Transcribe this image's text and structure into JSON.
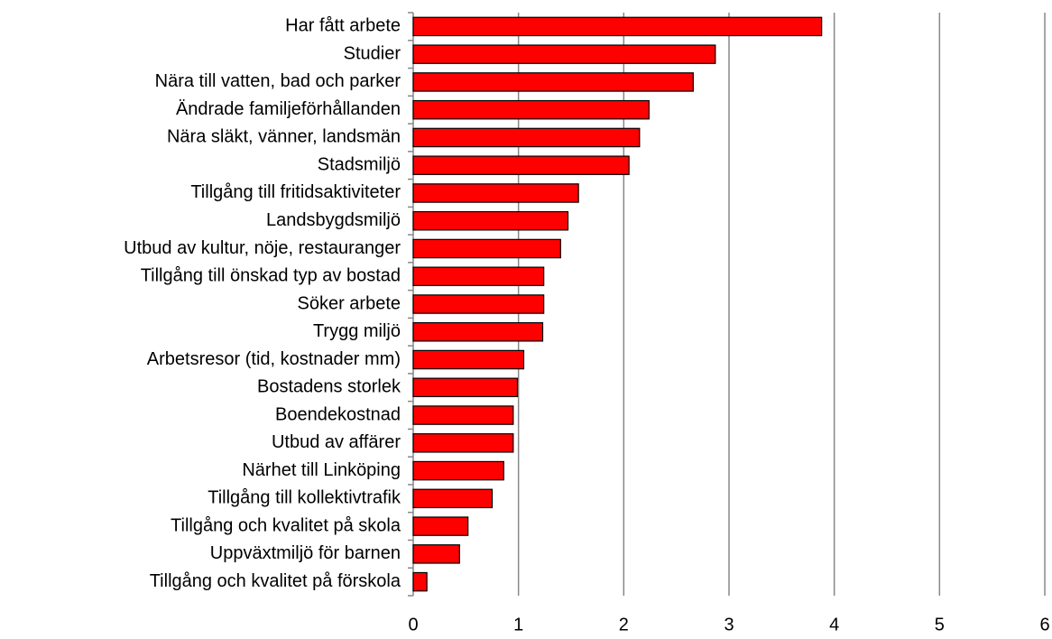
{
  "chart_data": {
    "type": "barh",
    "categories": [
      "Har fått arbete",
      "Studier",
      "Nära till vatten, bad och parker",
      "Ändrade familjeförhållanden",
      "Nära släkt, vänner, landsmän",
      "Stadsmiljö",
      "Tillgång till fritidsaktiviteter",
      "Landsbygdsmiljö",
      "Utbud av kultur, nöje, restauranger",
      "Tillgång till önskad typ av bostad",
      "Söker arbete",
      "Trygg miljö",
      "Arbetsresor (tid, kostnader mm)",
      "Bostadens storlek",
      "Boendekostnad",
      "Utbud av affärer",
      "Närhet till Linköping",
      "Tillgång till kollektivtrafik",
      "Tillgång och kvalitet på skola",
      "Uppväxtmiljö för barnen",
      "Tillgång och kvalitet på förskola"
    ],
    "values": [
      3.88,
      2.87,
      2.66,
      2.24,
      2.15,
      2.05,
      1.57,
      1.47,
      1.4,
      1.24,
      1.24,
      1.23,
      1.05,
      0.99,
      0.95,
      0.95,
      0.86,
      0.75,
      0.52,
      0.44,
      0.13
    ],
    "color": "#ff0000",
    "xlim": [
      0,
      6
    ],
    "xticks": [
      0,
      1,
      2,
      3,
      4,
      5,
      6
    ],
    "grid": true
  }
}
